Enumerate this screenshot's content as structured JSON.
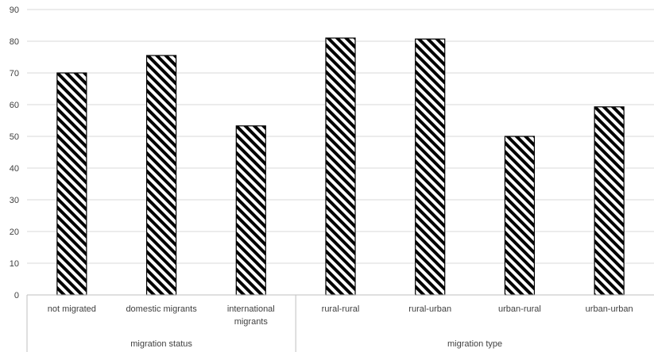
{
  "chart_data": {
    "type": "bar",
    "title": "",
    "xlabel": "",
    "ylabel": "",
    "ylim": [
      0,
      90
    ],
    "yticks": [
      0,
      10,
      20,
      30,
      40,
      50,
      60,
      70,
      80,
      90
    ],
    "grid": "horizontal",
    "bar_fill": "diagonal-hatch",
    "colors": {
      "hatch": "#000000",
      "grid": "#d9d9d9",
      "axis": "#bfbfbf",
      "text": "#404040"
    },
    "categories": [
      [
        "not migrated"
      ],
      [
        "domestic migrants"
      ],
      [
        "international",
        "migrants"
      ],
      [
        "rural-rural"
      ],
      [
        "rural-urban"
      ],
      [
        "urban-rural"
      ],
      [
        "urban-urban"
      ]
    ],
    "groups": [
      {
        "label": "migration status",
        "count": 3
      },
      {
        "label": "migration type",
        "count": 4
      }
    ],
    "values": [
      70,
      75.5,
      53.3,
      81,
      80.7,
      50,
      59.3
    ]
  }
}
